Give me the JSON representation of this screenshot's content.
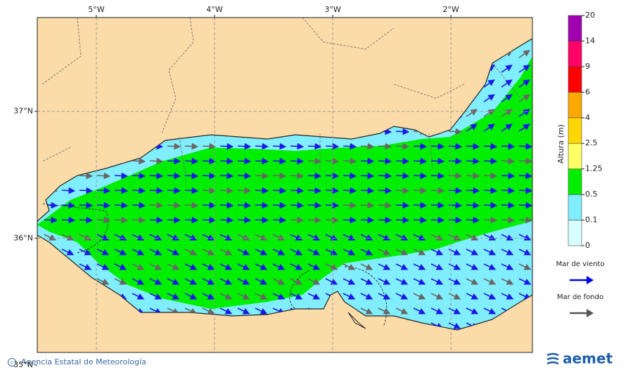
{
  "map": {
    "lon_ticks": [
      {
        "value": -5,
        "label": "5°W"
      },
      {
        "value": -4,
        "label": "4°W"
      },
      {
        "value": -3,
        "label": "3°W"
      },
      {
        "value": -2,
        "label": "2°W"
      }
    ],
    "lat_ticks": [
      {
        "value": 37,
        "label": "37°N"
      },
      {
        "value": 36,
        "label": "36°N"
      },
      {
        "value": 35,
        "label": "35°N"
      }
    ],
    "lon_range": [
      -5.5,
      -1.31
    ],
    "lat_range": [
      35.1,
      37.74
    ]
  },
  "colorbar": {
    "title": "Altura (m)",
    "levels": [
      0,
      0.1,
      0.5,
      1.25,
      2.5,
      4,
      6,
      9,
      14,
      20
    ],
    "colors": [
      "#d8ffff",
      "#80eefc",
      "#00ee00",
      "#ffff66",
      "#ffd600",
      "#ffa800",
      "#ff0000",
      "#ff0066",
      "#a000b0"
    ]
  },
  "legend": [
    {
      "label": "Mar de viento",
      "color": "#0000ee"
    },
    {
      "label": "Mar de fondo",
      "color": "#555555"
    }
  ],
  "footer": {
    "credit": "Agencia Estatal de Meteorología",
    "logo": "aemet"
  }
}
